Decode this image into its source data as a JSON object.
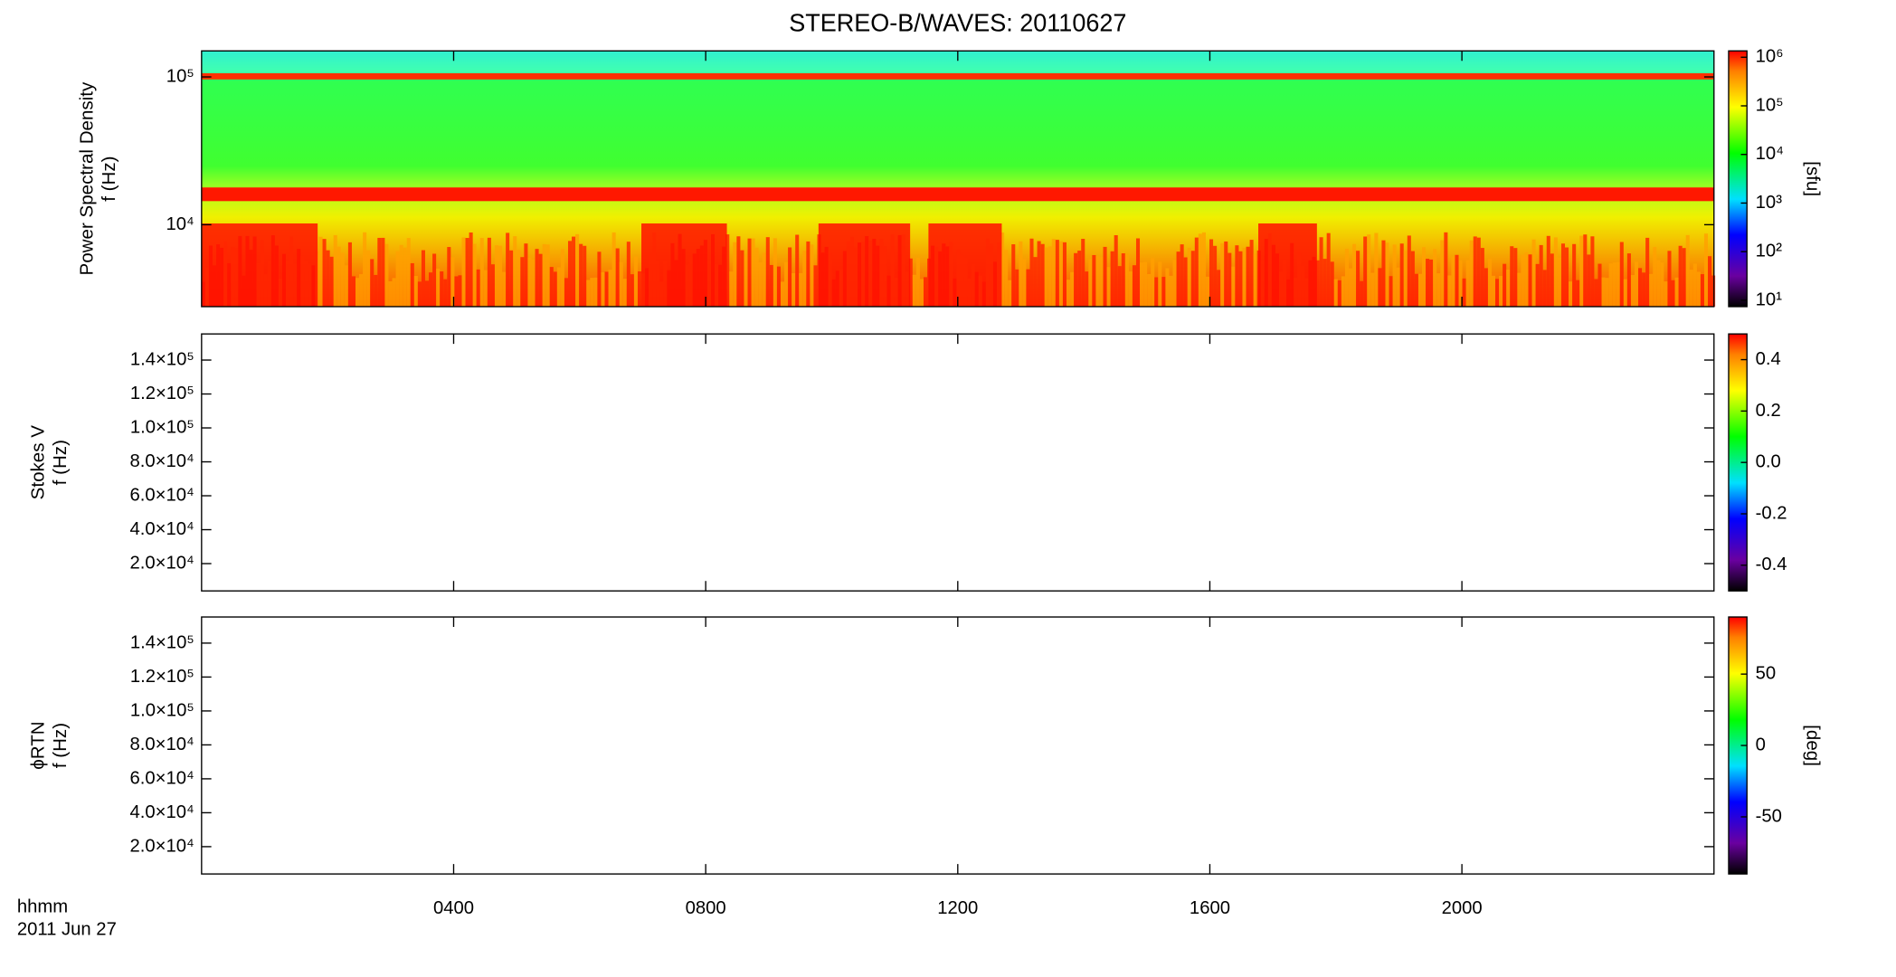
{
  "title": "STEREO-B/WAVES: 20110627",
  "chart_data": [
    {
      "type": "spectrogram",
      "ylabel": [
        "Power Spectral Density",
        "f (Hz)"
      ],
      "ylog": true,
      "ylim": [
        2790,
        150000
      ],
      "yticks": [
        {
          "value": 10000,
          "label": "10⁴"
        },
        {
          "value": 100000,
          "label": "10⁵"
        }
      ],
      "colorbar": {
        "log": true,
        "clim": [
          7.4,
          1350000
        ],
        "label": "[sfu]",
        "ticks": [
          {
            "value": 10,
            "label": "10¹"
          },
          {
            "value": 100,
            "label": "10²"
          },
          {
            "value": 1000,
            "label": "10³"
          },
          {
            "value": 10000,
            "label": "10⁴"
          },
          {
            "value": 100000,
            "label": "10⁵"
          },
          {
            "value": 1000000,
            "label": "10⁶"
          }
        ]
      }
    },
    {
      "type": "spectrogram",
      "ylabel": [
        "Stokes V",
        "f (Hz)"
      ],
      "ylog": false,
      "ylim": [
        3900,
        155400
      ],
      "yticks": [
        {
          "value": 20000,
          "label": "2.0×10⁴"
        },
        {
          "value": 40000,
          "label": "4.0×10⁴"
        },
        {
          "value": 60000,
          "label": "6.0×10⁴"
        },
        {
          "value": 80000,
          "label": "8.0×10⁴"
        },
        {
          "value": 100000,
          "label": "1.0×10⁵"
        },
        {
          "value": 120000,
          "label": "1.2×10⁵"
        },
        {
          "value": 140000,
          "label": "1.4×10⁵"
        }
      ],
      "colorbar": {
        "log": false,
        "clim": [
          -0.5,
          0.5
        ],
        "ticks": [
          -0.4,
          -0.2,
          {
            "value": 0,
            "label": "0.0"
          },
          0.2,
          0.4
        ]
      }
    },
    {
      "type": "spectrogram",
      "ylabel": [
        "ϕRTN",
        "f (Hz)"
      ],
      "ylog": false,
      "ylim": [
        3900,
        155400
      ],
      "yticks": [
        {
          "value": 20000,
          "label": "2.0×10⁴"
        },
        {
          "value": 40000,
          "label": "4.0×10⁴"
        },
        {
          "value": 60000,
          "label": "6.0×10⁴"
        },
        {
          "value": 80000,
          "label": "8.0×10⁴"
        },
        {
          "value": 100000,
          "label": "1.0×10⁵"
        },
        {
          "value": 120000,
          "label": "1.2×10⁵"
        },
        {
          "value": 140000,
          "label": "1.4×10⁵"
        }
      ],
      "colorbar": {
        "log": false,
        "clim": [
          -90,
          90
        ],
        "label": "[deg]",
        "ticks": [
          -50,
          0,
          50
        ]
      },
      "xlim": [
        0,
        24
      ],
      "xticks": [
        {
          "value": 4,
          "label": "0400"
        },
        {
          "value": 8,
          "label": "0800"
        },
        {
          "value": 12,
          "label": "1200"
        },
        {
          "value": 16,
          "label": "1600"
        },
        {
          "value": 20,
          "label": "2000"
        }
      ],
      "xlabel": [
        "hhmm",
        "2011 Jun 27"
      ]
    }
  ]
}
